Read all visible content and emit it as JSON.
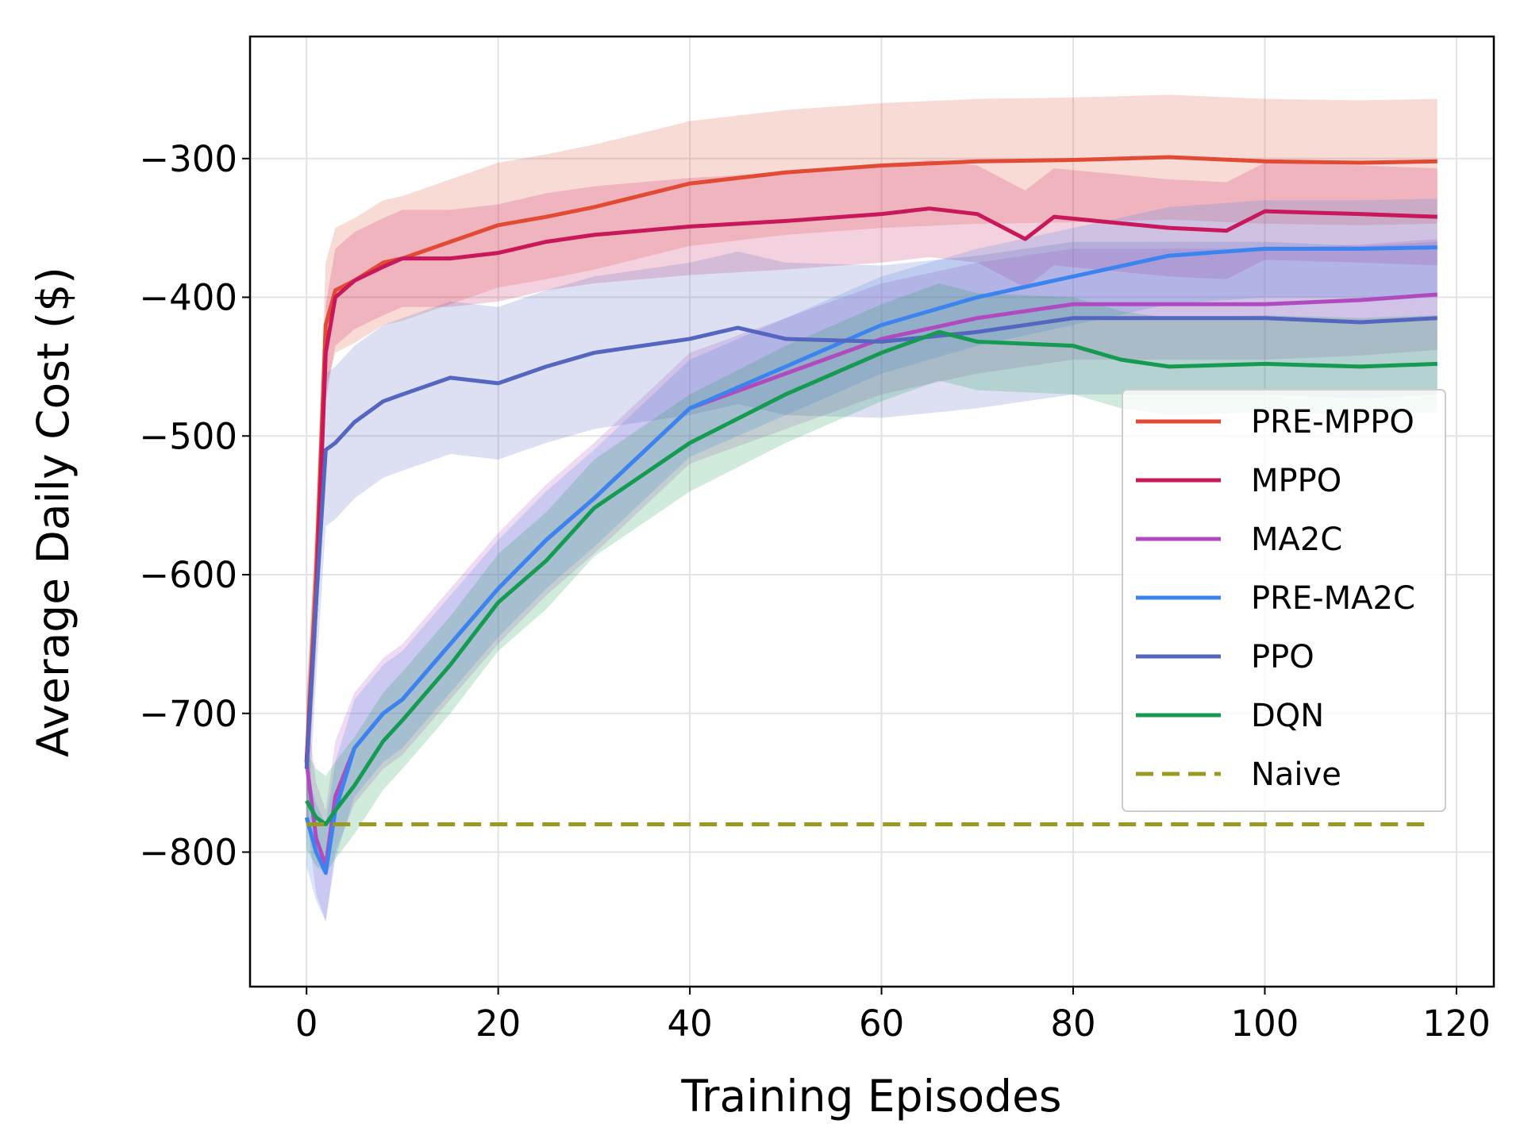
{
  "chart_data": {
    "type": "line",
    "title": "",
    "xlabel": "Training Episodes",
    "ylabel": "Average Daily Cost ($)",
    "xlim": [
      -5.9,
      123.9
    ],
    "ylim": [
      -897,
      -212
    ],
    "xticks": [
      0,
      20,
      40,
      60,
      80,
      100,
      120
    ],
    "xtick_labels": [
      "0",
      "20",
      "40",
      "60",
      "80",
      "100",
      "120"
    ],
    "yticks": [
      -800,
      -700,
      -600,
      -500,
      -400,
      -300
    ],
    "ytick_labels": [
      "−800",
      "−700",
      "−600",
      "−500",
      "−400",
      "−300"
    ],
    "grid": true,
    "legend_position": "center-right",
    "series": [
      {
        "name": "PRE-MPPO",
        "color": "#e24a33",
        "band": 45,
        "x": [
          0,
          1,
          2,
          3,
          5,
          8,
          10,
          15,
          20,
          25,
          30,
          40,
          50,
          60,
          70,
          80,
          90,
          100,
          110,
          118
        ],
        "y": [
          -735,
          -600,
          -420,
          -395,
          -388,
          -375,
          -372,
          -360,
          -348,
          -342,
          -335,
          -318,
          -310,
          -305,
          -302,
          -301,
          -299,
          -302,
          -303,
          -302
        ]
      },
      {
        "name": "MPPO",
        "color": "#c8175a",
        "band": 35,
        "x": [
          0,
          1,
          2,
          3,
          5,
          8,
          10,
          15,
          20,
          25,
          30,
          40,
          50,
          60,
          65,
          70,
          75,
          78,
          90,
          96,
          100,
          110,
          118
        ],
        "y": [
          -735,
          -620,
          -440,
          -400,
          -388,
          -378,
          -372,
          -372,
          -368,
          -360,
          -355,
          -349,
          -345,
          -340,
          -336,
          -340,
          -358,
          -342,
          -350,
          -352,
          -338,
          -340,
          -342
        ]
      },
      {
        "name": "MA2C",
        "color": "#b04bbf",
        "band": 40,
        "x": [
          0,
          1,
          2,
          3,
          5,
          8,
          10,
          15,
          20,
          25,
          30,
          40,
          50,
          60,
          70,
          80,
          90,
          100,
          110,
          118
        ],
        "y": [
          -735,
          -790,
          -810,
          -760,
          -725,
          -700,
          -690,
          -650,
          -610,
          -575,
          -545,
          -480,
          -455,
          -430,
          -415,
          -405,
          -405,
          -405,
          -402,
          -398
        ]
      },
      {
        "name": "PRE-MA2C",
        "color": "#3b84f0",
        "band": 35,
        "x": [
          0,
          1,
          2,
          3,
          5,
          8,
          10,
          15,
          20,
          25,
          30,
          40,
          50,
          60,
          70,
          80,
          90,
          100,
          110,
          118
        ],
        "y": [
          -775,
          -800,
          -815,
          -770,
          -725,
          -700,
          -690,
          -650,
          -610,
          -575,
          -545,
          -480,
          -450,
          -420,
          -400,
          -385,
          -370,
          -365,
          -365,
          -364
        ]
      },
      {
        "name": "PPO",
        "color": "#5566c0",
        "band": 55,
        "x": [
          0,
          1,
          2,
          3,
          5,
          8,
          10,
          15,
          20,
          25,
          30,
          40,
          45,
          50,
          60,
          70,
          80,
          90,
          100,
          110,
          118
        ],
        "y": [
          -740,
          -620,
          -510,
          -505,
          -490,
          -475,
          -470,
          -458,
          -462,
          -450,
          -440,
          -430,
          -422,
          -430,
          -432,
          -425,
          -415,
          -415,
          -415,
          -418,
          -415
        ]
      },
      {
        "name": "DQN",
        "color": "#159a52",
        "band": 35,
        "x": [
          0,
          1,
          2,
          3,
          5,
          8,
          10,
          15,
          20,
          25,
          30,
          40,
          50,
          60,
          66,
          70,
          80,
          85,
          90,
          100,
          110,
          118
        ],
        "y": [
          -763,
          -775,
          -780,
          -770,
          -752,
          -720,
          -705,
          -665,
          -620,
          -590,
          -552,
          -505,
          -470,
          -440,
          -425,
          -432,
          -435,
          -445,
          -450,
          -448,
          -450,
          -448
        ]
      },
      {
        "name": "Naive",
        "color": "#9a9a20",
        "dashed": true,
        "band": 0,
        "x": [
          0,
          117
        ],
        "y": [
          -780,
          -780
        ]
      }
    ]
  }
}
